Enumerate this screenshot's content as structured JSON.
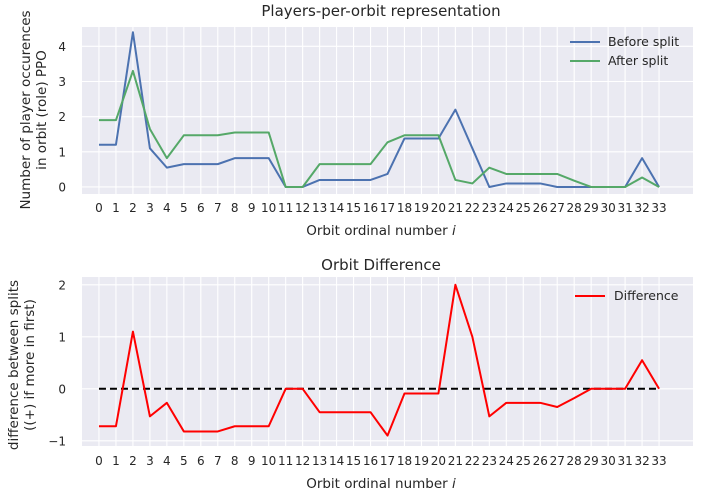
{
  "chart_data": [
    {
      "type": "line",
      "title": "Players-per-orbit representation",
      "xlabel": "Orbit ordinal number",
      "xlabel_italic": "i",
      "ylabel_lines": [
        "Number of player occurences",
        "in orbit (role) PPO"
      ],
      "x": [
        0,
        1,
        2,
        3,
        4,
        5,
        6,
        7,
        8,
        9,
        10,
        11,
        12,
        13,
        14,
        15,
        16,
        17,
        18,
        19,
        20,
        21,
        22,
        23,
        24,
        25,
        26,
        27,
        28,
        29,
        30,
        31,
        32,
        33
      ],
      "xlim": [
        -1,
        35
      ],
      "ylim": [
        -0.2,
        4.55
      ],
      "yticks": [
        0,
        1,
        2,
        3,
        4
      ],
      "grid": true,
      "legend_position": "upper-right",
      "series": [
        {
          "name": "Before split",
          "color": "#4c72b0",
          "values": [
            1.2,
            1.2,
            4.4,
            1.1,
            0.55,
            0.65,
            0.65,
            0.65,
            0.82,
            0.82,
            0.82,
            0.0,
            0.0,
            0.2,
            0.2,
            0.2,
            0.2,
            0.37,
            1.38,
            1.38,
            1.38,
            2.2,
            1.1,
            0.0,
            0.1,
            0.1,
            0.1,
            0.0,
            0.0,
            0.0,
            0.0,
            0.0,
            0.82,
            0.0
          ]
        },
        {
          "name": "After split",
          "color": "#55a868",
          "values": [
            1.9,
            1.9,
            3.3,
            1.65,
            0.82,
            1.47,
            1.47,
            1.47,
            1.55,
            1.55,
            1.55,
            0.0,
            0.0,
            0.65,
            0.65,
            0.65,
            0.65,
            1.27,
            1.47,
            1.47,
            1.47,
            0.2,
            0.1,
            0.55,
            0.37,
            0.37,
            0.37,
            0.37,
            0.18,
            0.0,
            0.0,
            0.0,
            0.27,
            0.0
          ]
        }
      ]
    },
    {
      "type": "line",
      "title": "Orbit Difference",
      "xlabel": "Orbit ordinal number",
      "xlabel_italic": "i",
      "ylabel_lines": [
        "difference between splits",
        "((+) if more in first)"
      ],
      "x": [
        0,
        1,
        2,
        3,
        4,
        5,
        6,
        7,
        8,
        9,
        10,
        11,
        12,
        13,
        14,
        15,
        16,
        17,
        18,
        19,
        20,
        21,
        22,
        23,
        24,
        25,
        26,
        27,
        28,
        29,
        30,
        31,
        32,
        33
      ],
      "xlim": [
        -1,
        35
      ],
      "ylim": [
        -1.1,
        2.15
      ],
      "yticks": [
        -1,
        0,
        1,
        2
      ],
      "grid": true,
      "legend_position": "upper-right",
      "reference_line": {
        "y": 0,
        "style": "dashed",
        "color": "#000000"
      },
      "series": [
        {
          "name": "Difference",
          "color": "#ff0000",
          "values": [
            -0.72,
            -0.72,
            1.1,
            -0.53,
            -0.27,
            -0.82,
            -0.82,
            -0.82,
            -0.72,
            -0.72,
            -0.72,
            0.0,
            0.0,
            -0.45,
            -0.45,
            -0.45,
            -0.45,
            -0.9,
            -0.09,
            -0.09,
            -0.09,
            2.0,
            1.0,
            -0.53,
            -0.27,
            -0.27,
            -0.27,
            -0.35,
            -0.18,
            0.0,
            0.0,
            0.0,
            0.55,
            0.0
          ]
        }
      ]
    }
  ]
}
